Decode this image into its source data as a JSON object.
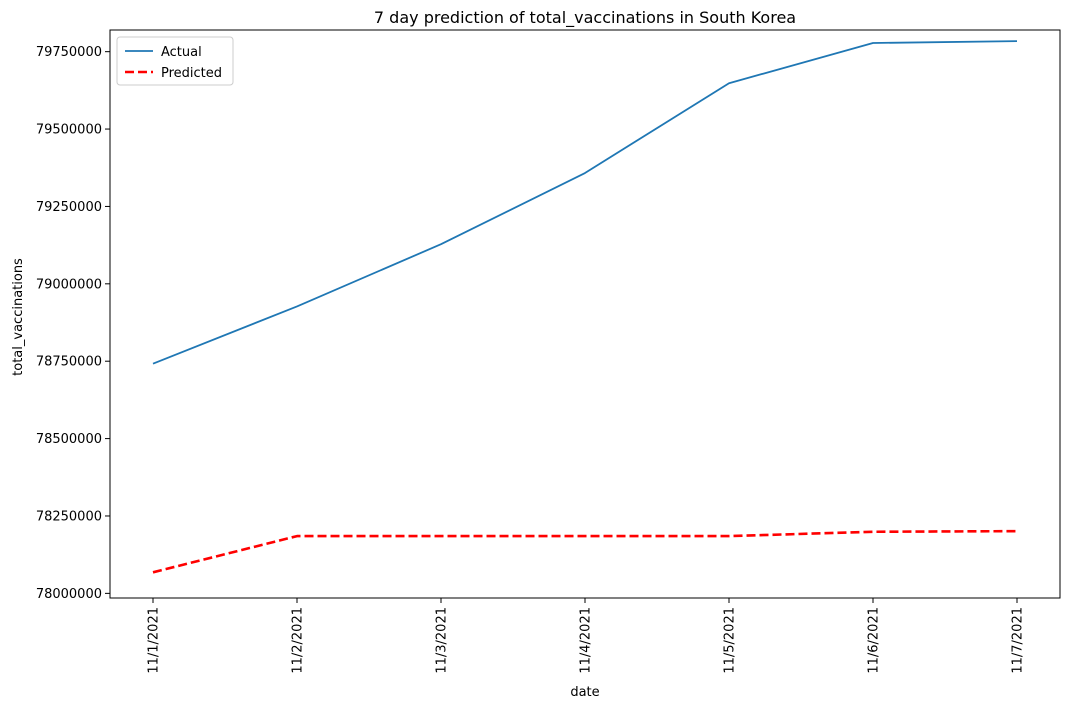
{
  "chart_data": {
    "type": "line",
    "title": "7 day prediction of total_vaccinations in South Korea",
    "xlabel": "date",
    "ylabel": "total_vaccinations",
    "categories": [
      "11/1/2021",
      "11/2/2021",
      "11/3/2021",
      "11/4/2021",
      "11/5/2021",
      "11/6/2021",
      "11/7/2021"
    ],
    "yticks": [
      78000000,
      78250000,
      78500000,
      78750000,
      79000000,
      79250000,
      79500000,
      79750000
    ],
    "ylim": [
      77985000,
      79820000
    ],
    "grid": false,
    "legend_position": "top-left",
    "series": [
      {
        "name": "Actual",
        "color": "#1f77b4",
        "style": "solid",
        "values": [
          78742000,
          78927000,
          79128000,
          79358000,
          79648000,
          79778000,
          79784000
        ]
      },
      {
        "name": "Predicted",
        "color": "#ff0000",
        "style": "dashed",
        "values": [
          78068000,
          78185000,
          78185000,
          78185000,
          78185000,
          78199000,
          78201000
        ]
      }
    ]
  }
}
